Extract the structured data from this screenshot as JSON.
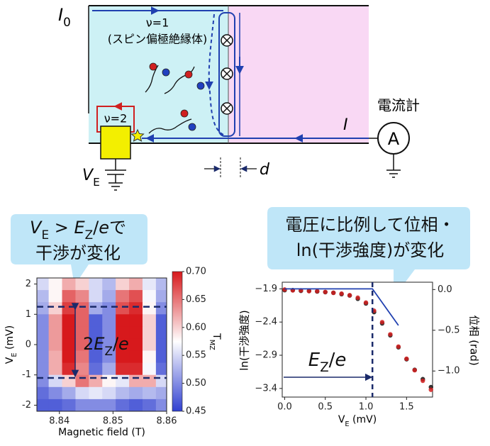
{
  "diagram": {
    "I0": [
      {
        "t": "I",
        "i": true
      },
      {
        "t": "0",
        "sub": true
      }
    ],
    "nu1": "ν=1",
    "nu1_note": "(スピン偏極絶縁体)",
    "nu2": "ν=2",
    "meter_label": "電流計",
    "meter_symbol": "A",
    "I": [
      {
        "t": "I",
        "i": true
      }
    ],
    "VE": [
      {
        "t": "V",
        "i": true
      },
      {
        "t": "E",
        "sub": true
      }
    ],
    "d": [
      {
        "t": "d",
        "i": true
      }
    ]
  },
  "callouts": [
    [
      [
        {
          "t": "V",
          "i": true
        },
        {
          "t": "E",
          "sub": true
        },
        {
          "t": " > "
        },
        {
          "t": "E",
          "i": true
        },
        {
          "t": "Z",
          "sub": true
        },
        {
          "t": "/"
        },
        {
          "t": "e",
          "i": true
        },
        {
          "t": "で"
        }
      ],
      [
        {
          "t": "干渉が変化"
        }
      ]
    ],
    [
      [
        {
          "t": "電圧に比例して位相・"
        }
      ],
      [
        {
          "t": "ln(干渉強度)が変化"
        }
      ]
    ]
  ],
  "chart_data": [
    {
      "type": "heatmap",
      "x": [
        8.837,
        8.839,
        8.842,
        8.844,
        8.847,
        8.849,
        8.852,
        8.854,
        8.857,
        8.859
      ],
      "y": [
        2,
        1.6,
        1.2,
        0.8,
        0.4,
        0,
        -0.4,
        -0.8,
        -1.2,
        -1.6,
        -2
      ],
      "z": [
        [
          0.55,
          0.58,
          0.62,
          0.6,
          0.55,
          0.53,
          0.6,
          0.62,
          0.56,
          0.53
        ],
        [
          0.53,
          0.58,
          0.66,
          0.64,
          0.55,
          0.52,
          0.65,
          0.67,
          0.57,
          0.52
        ],
        [
          0.52,
          0.6,
          0.68,
          0.66,
          0.52,
          0.5,
          0.67,
          0.69,
          0.58,
          0.5
        ],
        [
          0.5,
          0.63,
          0.7,
          0.66,
          0.47,
          0.5,
          0.7,
          0.7,
          0.6,
          0.47
        ],
        [
          0.5,
          0.63,
          0.7,
          0.66,
          0.47,
          0.5,
          0.7,
          0.7,
          0.6,
          0.47
        ],
        [
          0.5,
          0.63,
          0.7,
          0.66,
          0.47,
          0.5,
          0.7,
          0.7,
          0.6,
          0.47
        ],
        [
          0.5,
          0.62,
          0.7,
          0.65,
          0.47,
          0.5,
          0.7,
          0.7,
          0.58,
          0.47
        ],
        [
          0.5,
          0.62,
          0.69,
          0.64,
          0.48,
          0.52,
          0.69,
          0.69,
          0.57,
          0.48
        ],
        [
          0.5,
          0.55,
          0.6,
          0.65,
          0.62,
          0.58,
          0.56,
          0.62,
          0.62,
          0.55
        ],
        [
          0.48,
          0.5,
          0.52,
          0.55,
          0.56,
          0.55,
          0.53,
          0.52,
          0.53,
          0.52
        ],
        [
          0.47,
          0.47,
          0.48,
          0.5,
          0.5,
          0.5,
          0.48,
          0.47,
          0.48,
          0.5
        ]
      ],
      "xlim": [
        8.8358,
        8.86
      ],
      "ylim": [
        -2.2,
        2.2
      ],
      "xticks": [
        8.84,
        8.85,
        8.86
      ],
      "yticks": [
        -2,
        -1,
        0,
        1,
        2
      ],
      "xlabel": [
        {
          "t": "Magnetic field (T)"
        }
      ],
      "ylabel": [
        {
          "t": "V"
        },
        {
          "t": "E",
          "sub": true
        },
        {
          "t": " (mV)"
        }
      ],
      "clim": [
        0.45,
        0.7
      ],
      "cticks": [
        0.45,
        {
          "value": 0.5,
          "label": "0.50"
        },
        0.55,
        {
          "value": 0.6,
          "label": "0.60"
        },
        0.65,
        {
          "value": 0.7,
          "label": "0.70"
        }
      ],
      "colorbar_label": [
        {
          "t": "T"
        },
        {
          "t": "MZ",
          "sub": true
        }
      ],
      "hlines": [
        1.25,
        -1.1
      ],
      "annotation": [
        {
          "t": "2"
        },
        {
          "t": "E",
          "i": true
        },
        {
          "t": "Z",
          "sub": true
        },
        {
          "t": "/"
        },
        {
          "t": "e",
          "i": true
        }
      ]
    },
    {
      "type": "scatter",
      "xlim": [
        -0.03,
        1.82
      ],
      "ylim": [
        -3.53,
        -1.8
      ],
      "y2lim": [
        -1.32,
        0.09
      ],
      "xticks": [
        {
          "value": 0,
          "label": "0.0"
        },
        {
          "value": 0.5,
          "label": "0.5"
        },
        {
          "value": 1,
          "label": "1.0"
        },
        {
          "value": 1.5,
          "label": "1.5"
        }
      ],
      "yticks": [
        {
          "value": -1.9,
          "label": "−1.9"
        },
        {
          "value": -2.4,
          "label": "−2.4"
        },
        {
          "value": -2.9,
          "label": "−2.9"
        },
        {
          "value": -3.4,
          "label": "−3.4"
        }
      ],
      "y2ticks": [
        {
          "value": 0,
          "label": "0.0"
        },
        {
          "value": -0.5,
          "label": "−0.5"
        },
        {
          "value": -1,
          "label": "−1.0"
        }
      ],
      "xlabel": [
        {
          "t": "V"
        },
        {
          "t": "E",
          "sub": true
        },
        {
          "t": " (mV)"
        }
      ],
      "ylabel": "ln(干渉強度)",
      "y2label": "位相 (rad)",
      "x": [
        0,
        0.1,
        0.2,
        0.3,
        0.4,
        0.5,
        0.6,
        0.7,
        0.8,
        0.9,
        1.0,
        1.1,
        1.2,
        1.3,
        1.4,
        1.5,
        1.6,
        1.7,
        1.8
      ],
      "series": [
        {
          "color": "#111111",
          "values": [
            -1.92,
            -1.92,
            -1.93,
            -1.93,
            -1.94,
            -1.95,
            -1.96,
            -1.98,
            -2.0,
            -2.05,
            -2.12,
            -2.25,
            -2.42,
            -2.6,
            -2.78,
            -2.96,
            -3.12,
            -3.26,
            -3.38
          ]
        },
        {
          "color": "#d42020",
          "axis": "y2",
          "values": [
            0,
            -0.01,
            -0.01,
            -0.02,
            -0.02,
            -0.03,
            -0.04,
            -0.05,
            -0.07,
            -0.1,
            -0.16,
            -0.26,
            -0.4,
            -0.55,
            -0.7,
            -0.85,
            -0.99,
            -1.12,
            -1.23
          ]
        }
      ],
      "theory": {
        "color": "#2040b0",
        "x": [
          0,
          1.08,
          1.4
        ],
        "values": [
          -1.9,
          -1.9,
          -2.45
        ]
      },
      "vline": 1.08,
      "annotation": [
        {
          "t": "E",
          "i": true
        },
        {
          "t": "Z",
          "sub": true
        },
        {
          "t": "/"
        },
        {
          "t": "e",
          "i": true
        }
      ]
    }
  ]
}
